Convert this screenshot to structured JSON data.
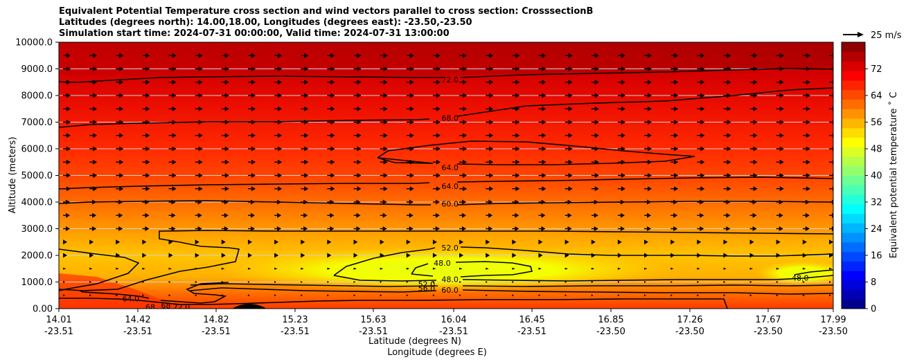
{
  "titles": {
    "line1": "Equivalent Potential Temperature cross section and wind vectors parallel to cross section: CrosssectionB",
    "line2": "Latitudes (degrees north): 14.00,18.00, Longitudes (degrees east): -23.50,-23.50",
    "line3": "Simulation start time: 2024-07-31 00:00:00, Valid time: 2024-07-31 13:00:00"
  },
  "quiver_key": "25 m/s",
  "chart_data": {
    "type": "heatmap",
    "ylabel": "Altitude (meters)",
    "xlabel_lat": "Latitude (degrees N)",
    "xlabel_lon": "Longitude (degrees E)",
    "ylim": [
      0,
      10000
    ],
    "y_ticks": [
      "0.00",
      "1000.0",
      "2000.0",
      "3000.0",
      "4000.0",
      "5000.0",
      "6000.0",
      "7000.0",
      "8000.0",
      "9000.0",
      "10000.0"
    ],
    "x_ticks": [
      {
        "lat": "14.01",
        "lon": "-23.51"
      },
      {
        "lat": "14.42",
        "lon": "-23.51"
      },
      {
        "lat": "14.82",
        "lon": "-23.51"
      },
      {
        "lat": "15.23",
        "lon": "-23.51"
      },
      {
        "lat": "15.63",
        "lon": "-23.51"
      },
      {
        "lat": "16.04",
        "lon": "-23.51"
      },
      {
        "lat": "16.45",
        "lon": "-23.51"
      },
      {
        "lat": "16.85",
        "lon": "-23.50"
      },
      {
        "lat": "17.26",
        "lon": "-23.50"
      },
      {
        "lat": "17.67",
        "lon": "-23.50"
      },
      {
        "lat": "17.99",
        "lon": "-23.50"
      }
    ],
    "colorbar": {
      "label": "Equivalent potential temperature $^\\circ$C",
      "label_display": "Equivalent potential temperature ˚ C",
      "range": [
        0,
        80
      ],
      "ticks": [
        "0",
        "8",
        "16",
        "24",
        "32",
        "40",
        "48",
        "56",
        "64",
        "72"
      ],
      "colors": [
        "#00008f",
        "#0000b4",
        "#0000d9",
        "#0000ff",
        "#0024ff",
        "#0049ff",
        "#006dff",
        "#0092ff",
        "#00b6ff",
        "#00dbff",
        "#00ffff",
        "#24ffdb",
        "#49ffb6",
        "#6dff92",
        "#92ff6d",
        "#b6ff49",
        "#dbff24",
        "#ffff00",
        "#ffdb00",
        "#ffb600",
        "#ff9200",
        "#ff6d00",
        "#ff4900",
        "#ff2400",
        "#ff0000",
        "#d90000",
        "#b40000",
        "#8f0000"
      ]
    },
    "grid": true,
    "contour_labels": [
      {
        "text": "72.0",
        "lat": 16.02,
        "alt": 8600
      },
      {
        "text": "68.0",
        "lat": 16.02,
        "alt": 7150
      },
      {
        "text": "64.0",
        "lat": 16.02,
        "alt": 5300
      },
      {
        "text": "64.0",
        "lat": 16.02,
        "alt": 4600
      },
      {
        "text": "60.0",
        "lat": 16.02,
        "alt": 3930
      },
      {
        "text": "52.0",
        "lat": 16.02,
        "alt": 2280
      },
      {
        "text": "48.0",
        "lat": 15.98,
        "alt": 1720
      },
      {
        "text": "48.0",
        "lat": 16.02,
        "alt": 1100
      },
      {
        "text": "52.0",
        "lat": 15.9,
        "alt": 920
      },
      {
        "text": "56.0",
        "lat": 15.9,
        "alt": 760
      },
      {
        "text": "60.0",
        "lat": 16.02,
        "alt": 700
      },
      {
        "text": "64.0",
        "lat": 14.38,
        "alt": 380
      },
      {
        "text": "68",
        "lat": 14.48,
        "alt": 60
      },
      {
        "text": "68",
        "lat": 14.56,
        "alt": 120
      },
      {
        "text": "72.0",
        "lat": 14.64,
        "alt": 60
      },
      {
        "text": "48.0",
        "lat": 17.82,
        "alt": 1150
      }
    ]
  }
}
